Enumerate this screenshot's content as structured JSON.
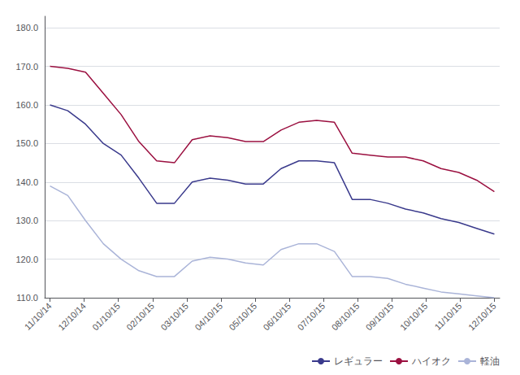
{
  "chart_data": {
    "type": "line",
    "x": [
      0,
      1,
      2,
      3,
      4,
      5,
      6,
      7,
      8,
      9,
      10,
      11,
      12,
      13,
      14,
      15,
      16,
      17,
      18,
      19,
      20,
      21,
      22,
      23,
      24,
      25
    ],
    "xlim": [
      -0.3,
      25.3
    ],
    "xticks": [
      {
        "value": 0,
        "label": "11/10/14"
      },
      {
        "value": 1.9230769230769231,
        "label": "12/10/14"
      },
      {
        "value": 3.8461538461538463,
        "label": "01/10/15"
      },
      {
        "value": 5.769230769230769,
        "label": "02/10/15"
      },
      {
        "value": 7.6923076923076925,
        "label": "03/10/15"
      },
      {
        "value": 9.615384615384615,
        "label": "04/10/15"
      },
      {
        "value": 11.538461538461538,
        "label": "05/10/15"
      },
      {
        "value": 13.461538461538462,
        "label": "06/10/15"
      },
      {
        "value": 15.384615384615385,
        "label": "07/10/15"
      },
      {
        "value": 17.307692307692307,
        "label": "08/10/15"
      },
      {
        "value": 19.23076923076923,
        "label": "09/10/15"
      },
      {
        "value": 21.153846153846153,
        "label": "10/10/15"
      },
      {
        "value": 23.076923076923077,
        "label": "11/10/15"
      },
      {
        "value": 25,
        "label": "12/10/15"
      }
    ],
    "ylim": [
      110.0,
      183.0
    ],
    "yticks": [
      {
        "value": 110,
        "label": "110.0"
      },
      {
        "value": 120,
        "label": "120.0"
      },
      {
        "value": 130,
        "label": "130.0"
      },
      {
        "value": 140,
        "label": "140.0"
      },
      {
        "value": 150,
        "label": "150.0"
      },
      {
        "value": 160,
        "label": "160.0"
      },
      {
        "value": 170,
        "label": "170.0"
      },
      {
        "value": 180,
        "label": "180.0"
      }
    ],
    "grid": true,
    "legend": "lower right",
    "series": [
      {
        "name": "レギュラー",
        "color": "#3a3a8c",
        "values": [
          160.0,
          158.5,
          155.0,
          150.0,
          147.0,
          141.0,
          134.5,
          134.5,
          140.0,
          141.0,
          140.5,
          139.5,
          139.5,
          143.5,
          145.5,
          145.5,
          145.0,
          135.5,
          135.5,
          134.5,
          133.0,
          132.0,
          130.5,
          129.5,
          128.0,
          126.5
        ]
      },
      {
        "name": "ハイオク",
        "color": "#9b1040",
        "values": [
          170.0,
          169.5,
          168.5,
          163.0,
          157.5,
          150.5,
          145.5,
          145.0,
          151.0,
          152.0,
          151.5,
          150.5,
          150.5,
          153.5,
          155.5,
          156.0,
          155.5,
          147.5,
          147.0,
          146.5,
          146.5,
          145.5,
          143.5,
          142.5,
          140.5,
          137.5
        ]
      },
      {
        "name": "軽油",
        "color": "#aab4d8",
        "values": [
          139.0,
          136.5,
          130.0,
          124.0,
          120.0,
          117.0,
          115.5,
          115.5,
          119.5,
          120.5,
          120.0,
          119.0,
          118.5,
          122.5,
          124.0,
          124.0,
          122.0,
          115.5,
          115.5,
          115.0,
          113.5,
          112.5,
          111.5,
          111.0,
          110.5,
          110.0
        ]
      }
    ]
  }
}
